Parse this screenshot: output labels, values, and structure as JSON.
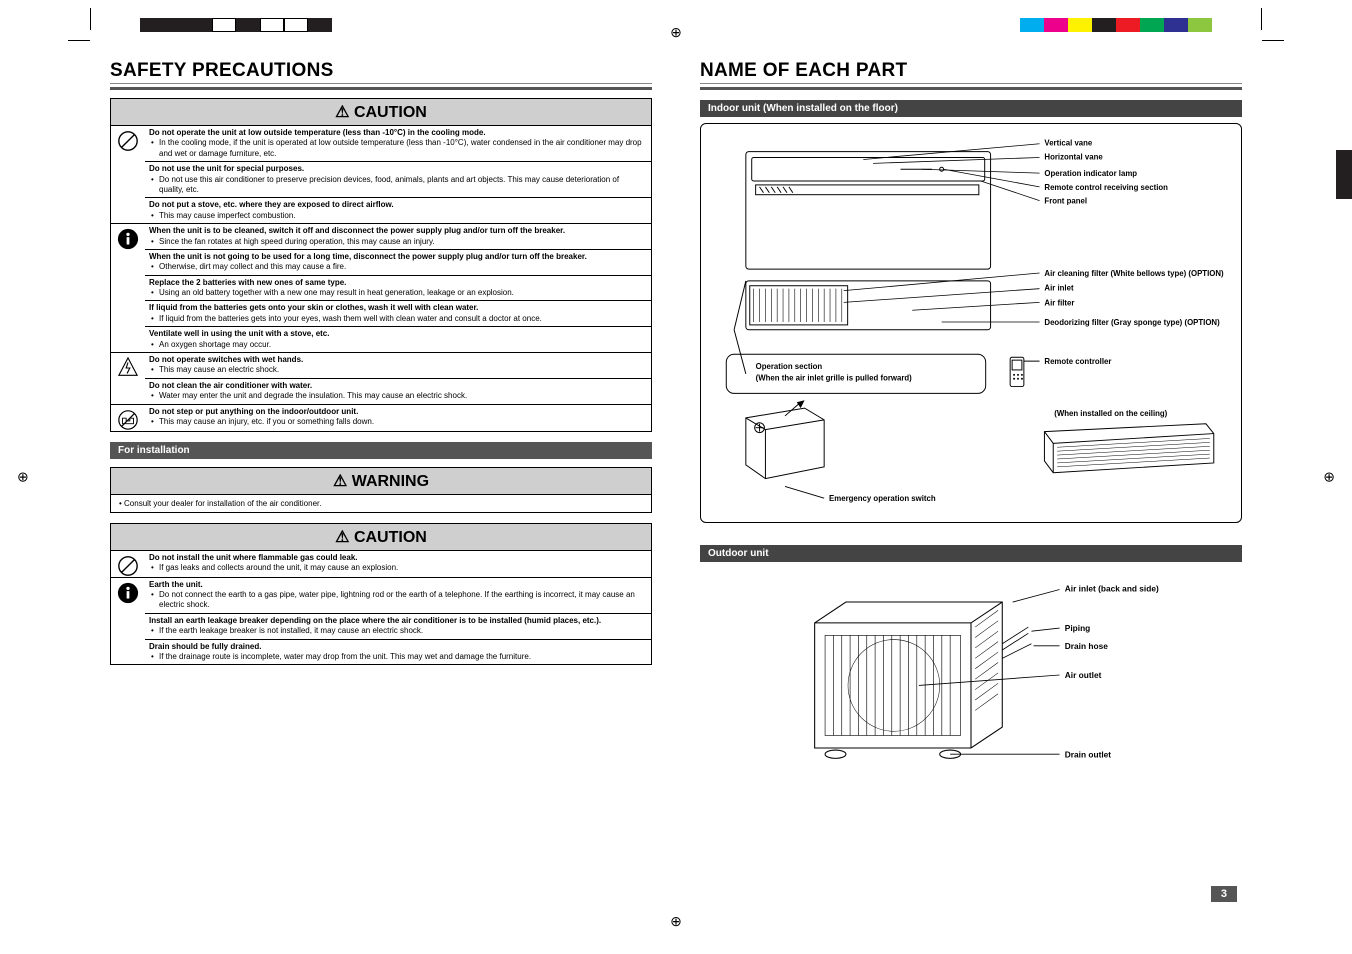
{
  "color_bars_left": [
    "#231f20",
    "#231f20",
    "#231f20",
    "#ffffff",
    "#231f20",
    "#ffffff",
    "#ffffff",
    "#231f20"
  ],
  "color_bars_right": [
    "#00aeef",
    "#ec008c",
    "#fff200",
    "#231f20",
    "#ed1c24",
    "#00a651",
    "#2e3192",
    "#8dc63f"
  ],
  "left": {
    "title": "SAFETY PRECAUTIONS",
    "caution": {
      "header": "⚠ CAUTION",
      "groups": [
        {
          "icon": "prohibit",
          "entries": [
            {
              "bold": "Do not operate the unit at low outside temperature (less than -10°C) in the cooling mode.",
              "bullets": [
                "In the cooling mode, if the unit is operated at low outside temperature (less than -10°C), water condensed in the air conditioner may drop and wet or damage furniture, etc."
              ]
            },
            {
              "bold": "Do not use the unit for special purposes.",
              "bullets": [
                "Do not use this air conditioner to preserve precision devices, food, animals, plants and art objects. This may cause deterioration of quality, etc."
              ]
            },
            {
              "bold": "Do not put a stove, etc. where they are exposed to direct airflow.",
              "bullets": [
                "This may cause imperfect combustion."
              ]
            }
          ]
        },
        {
          "icon": "mandatory",
          "entries": [
            {
              "bold": "When the unit is to be cleaned, switch it off and disconnect the power supply plug and/or turn off the breaker.",
              "bullets": [
                "Since the fan rotates at high speed during operation, this may cause an injury."
              ]
            },
            {
              "bold": "When the unit is not going to be used for a long time, disconnect the power supply plug and/or turn off the breaker.",
              "bullets": [
                "Otherwise, dirt may collect and this may cause a fire."
              ]
            },
            {
              "bold": "Replace the 2 batteries with new ones of same type.",
              "bullets": [
                "Using an old battery together with a new one may result in heat generation, leakage or an explosion."
              ]
            },
            {
              "bold": "If liquid from the batteries gets onto your skin or clothes, wash it well with clean water.",
              "bullets": [
                "If liquid from the batteries gets into your eyes, wash them well with clean water and consult a doctor at once."
              ]
            },
            {
              "bold": "Ventilate well in using the unit with a stove, etc.",
              "bullets": [
                "An oxygen shortage may occur."
              ]
            }
          ]
        },
        {
          "icon": "shock",
          "entries": [
            {
              "bold": "Do not operate switches with wet hands.",
              "bullets": [
                "This may cause an electric shock."
              ]
            },
            {
              "bold": "Do not clean the air conditioner with water.",
              "bullets": [
                "Water may enter the unit and degrade the insulation. This may cause an electric shock."
              ]
            }
          ]
        },
        {
          "icon": "nostep",
          "entries": [
            {
              "bold": "Do not step or put anything on the indoor/outdoor unit.",
              "bullets": [
                "This may cause an injury, etc. if you or something falls down."
              ]
            }
          ]
        }
      ]
    },
    "install_header": "For installation",
    "warning": {
      "header": "⚠ WARNING",
      "text": "Consult your dealer for installation of the air conditioner."
    },
    "caution2": {
      "header": "⚠ CAUTION",
      "groups": [
        {
          "icon": "prohibit",
          "entries": [
            {
              "bold": "Do not install the unit where flammable gas could leak.",
              "bullets": [
                "If gas leaks and collects around the unit, it may cause an explosion."
              ]
            }
          ]
        },
        {
          "icon": "mandatory",
          "entries": [
            {
              "bold": "Earth the unit.",
              "bullets": [
                "Do not connect the earth to a gas pipe, water pipe, lightning rod or the earth of a telephone. If the earthing is incorrect, it may cause an electric shock."
              ]
            },
            {
              "bold": "Install an earth leakage breaker depending on the place where the air conditioner is to be installed (humid places, etc.).",
              "bullets": [
                "If the earth leakage breaker is not installed, it may cause an electric shock."
              ]
            },
            {
              "bold": "Drain should be fully drained.",
              "bullets": [
                "If the drainage route is incomplete, water may drop from the unit. This may wet and damage the furniture."
              ]
            }
          ]
        }
      ]
    }
  },
  "right": {
    "title": "NAME OF EACH PART",
    "indoor_header": "Indoor unit (When installed on the floor)",
    "indoor_labels": {
      "vertical_vane": "Vertical vane",
      "horizontal_vane": "Horizontal vane",
      "operation_indicator": "Operation indicator lamp",
      "remote_section": "Remote control receiving section",
      "front_panel": "Front panel",
      "air_cleaning": "Air cleaning filter (White bellows type) (OPTION)",
      "air_inlet": "Air inlet",
      "air_filter": "Air filter",
      "deodorizing": "Deodorizing filter (Gray sponge type) (OPTION)",
      "operation_section": "Operation section",
      "operation_section_note": "(When the air inlet grille is pulled forward)",
      "remote_controller": "Remote controller",
      "emergency": "Emergency operation switch",
      "ceiling_note": "(When installed on the ceiling)"
    },
    "outdoor_header": "Outdoor unit",
    "outdoor_labels": {
      "air_inlet": "Air inlet (back and side)",
      "piping": "Piping",
      "drain_hose": "Drain hose",
      "air_outlet": "Air outlet",
      "drain_outlet": "Drain outlet"
    }
  },
  "page_number": "3"
}
